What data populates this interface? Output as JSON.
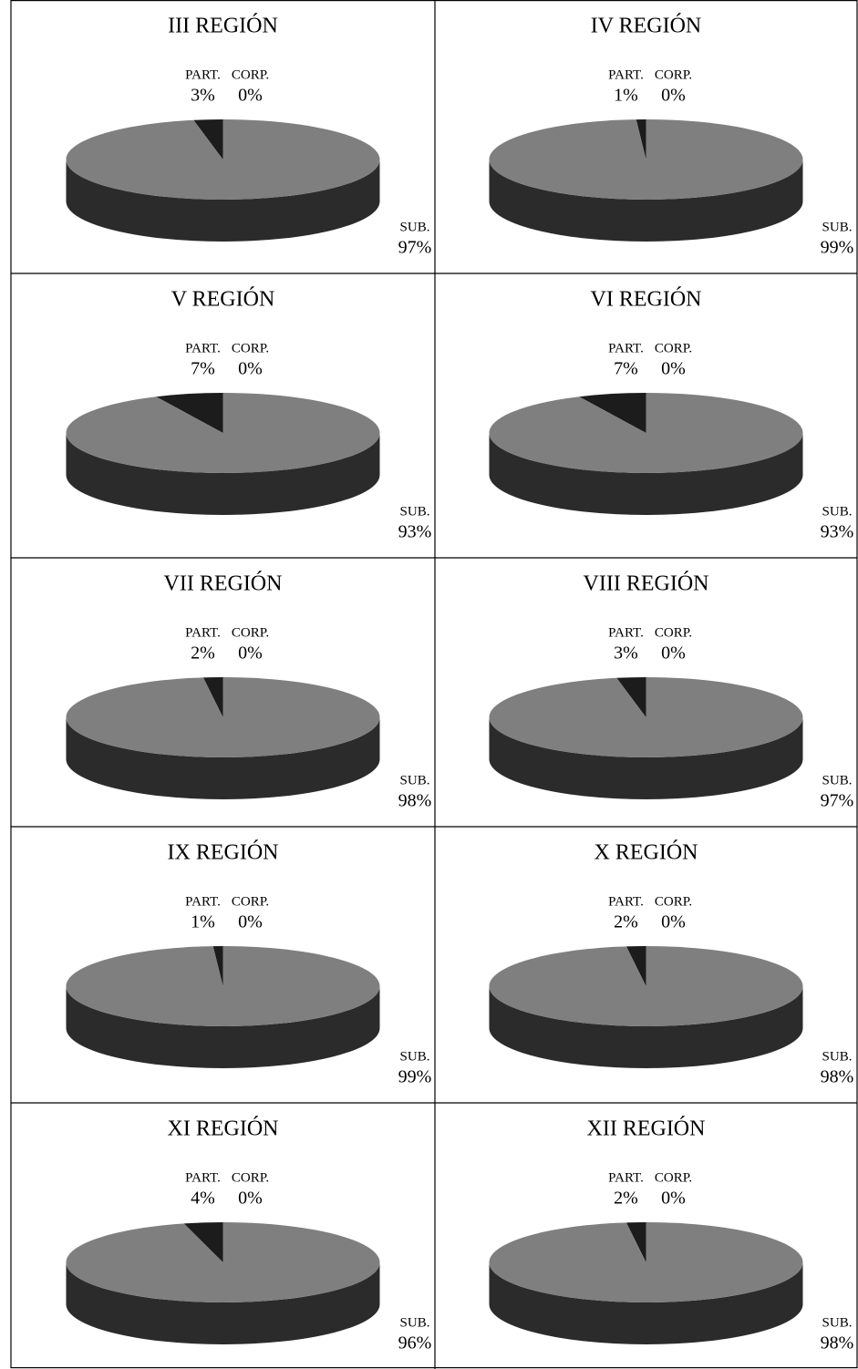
{
  "chart_data": [
    {
      "type": "pie",
      "title": "III REGIÓN",
      "categories": [
        "PART.",
        "CORP.",
        "SUB."
      ],
      "values": [
        3,
        0,
        97
      ],
      "value_labels": [
        "3%",
        "0%",
        "97%"
      ],
      "colors": [
        "#1c1c1c",
        "#3a3a3a",
        "#7f7f7f"
      ]
    },
    {
      "type": "pie",
      "title": "IV REGIÓN",
      "categories": [
        "PART.",
        "CORP.",
        "SUB."
      ],
      "values": [
        1,
        0,
        99
      ],
      "value_labels": [
        "1%",
        "0%",
        "99%"
      ],
      "colors": [
        "#1c1c1c",
        "#3a3a3a",
        "#7f7f7f"
      ]
    },
    {
      "type": "pie",
      "title": "V REGIÓN",
      "categories": [
        "PART.",
        "CORP.",
        "SUB."
      ],
      "values": [
        7,
        0,
        93
      ],
      "value_labels": [
        "7%",
        "0%",
        "93%"
      ],
      "colors": [
        "#1c1c1c",
        "#3a3a3a",
        "#7f7f7f"
      ]
    },
    {
      "type": "pie",
      "title": "VI REGIÓN",
      "categories": [
        "PART.",
        "CORP.",
        "SUB."
      ],
      "values": [
        7,
        0,
        93
      ],
      "value_labels": [
        "7%",
        "0%",
        "93%"
      ],
      "colors": [
        "#1c1c1c",
        "#3a3a3a",
        "#7f7f7f"
      ]
    },
    {
      "type": "pie",
      "title": "VII REGIÓN",
      "categories": [
        "PART.",
        "CORP.",
        "SUB."
      ],
      "values": [
        2,
        0,
        98
      ],
      "value_labels": [
        "2%",
        "0%",
        "98%"
      ],
      "colors": [
        "#1c1c1c",
        "#3a3a3a",
        "#7f7f7f"
      ]
    },
    {
      "type": "pie",
      "title": "VIII REGIÓN",
      "categories": [
        "PART.",
        "CORP.",
        "SUB."
      ],
      "values": [
        3,
        0,
        97
      ],
      "value_labels": [
        "3%",
        "0%",
        "97%"
      ],
      "colors": [
        "#1c1c1c",
        "#3a3a3a",
        "#7f7f7f"
      ]
    },
    {
      "type": "pie",
      "title": "IX REGIÓN",
      "categories": [
        "PART.",
        "CORP.",
        "SUB."
      ],
      "values": [
        1,
        0,
        99
      ],
      "value_labels": [
        "1%",
        "0%",
        "99%"
      ],
      "colors": [
        "#1c1c1c",
        "#3a3a3a",
        "#7f7f7f"
      ]
    },
    {
      "type": "pie",
      "title": "X REGIÓN",
      "categories": [
        "PART.",
        "CORP.",
        "SUB."
      ],
      "values": [
        2,
        0,
        98
      ],
      "value_labels": [
        "2%",
        "0%",
        "98%"
      ],
      "colors": [
        "#1c1c1c",
        "#3a3a3a",
        "#7f7f7f"
      ]
    },
    {
      "type": "pie",
      "title": "XI REGIÓN",
      "categories": [
        "PART.",
        "CORP.",
        "SUB."
      ],
      "values": [
        4,
        0,
        96
      ],
      "value_labels": [
        "4%",
        "0%",
        "96%"
      ],
      "colors": [
        "#1c1c1c",
        "#3a3a3a",
        "#7f7f7f"
      ]
    },
    {
      "type": "pie",
      "title": "XII REGIÓN",
      "categories": [
        "PART.",
        "CORP.",
        "SUB."
      ],
      "values": [
        2,
        0,
        98
      ],
      "value_labels": [
        "2%",
        "0%",
        "98%"
      ],
      "colors": [
        "#1c1c1c",
        "#3a3a3a",
        "#7f7f7f"
      ]
    }
  ]
}
